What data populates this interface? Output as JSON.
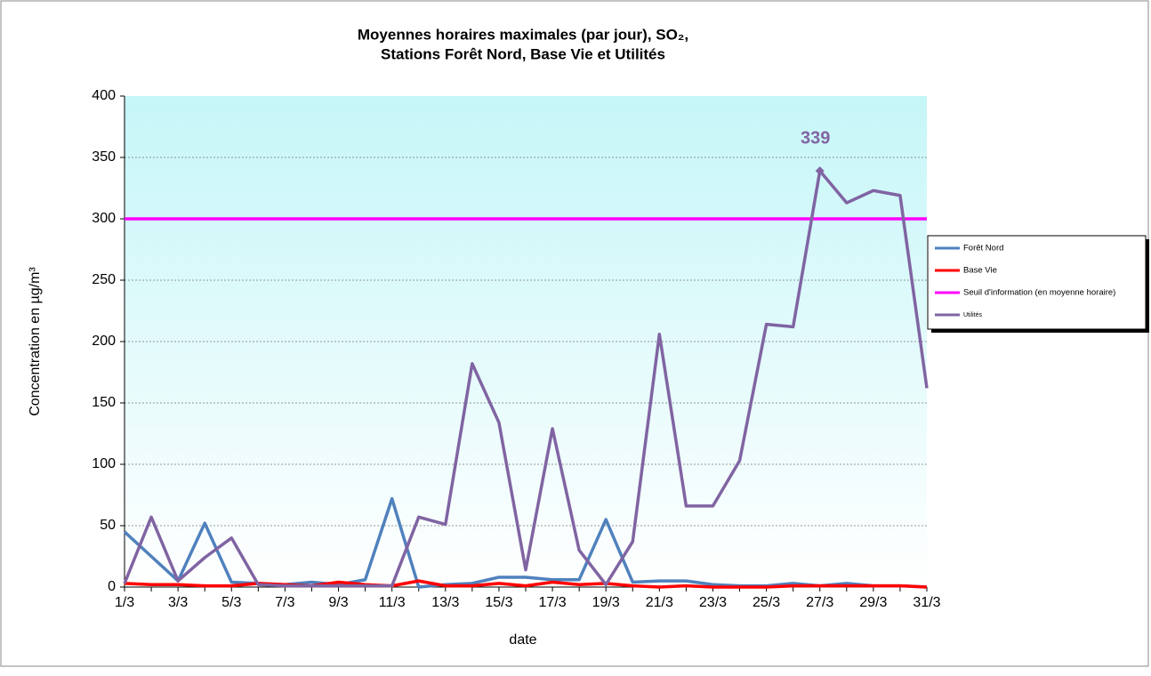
{
  "chart_data": {
    "type": "line",
    "title": [
      "Moyennes horaires maximales (par jour), SO₂,",
      "Stations Forêt Nord, Base Vie et Utilités"
    ],
    "xlabel": "date",
    "ylabel": "Concentration en µg/m³",
    "categories": [
      "1/3",
      null,
      "3/3",
      null,
      "5/3",
      null,
      "7/3",
      null,
      "9/3",
      null,
      "11/3",
      null,
      "13/3",
      null,
      "15/3",
      null,
      "17/3",
      null,
      "19/3",
      null,
      "21/3",
      null,
      "23/3",
      null,
      "25/3",
      null,
      "27/3",
      null,
      "29/3",
      null,
      "31/3"
    ],
    "series": [
      {
        "name": "Forêt Nord",
        "color": "#4f81bd",
        "values": [
          45,
          25,
          5,
          52,
          4,
          3,
          2,
          4,
          2,
          6,
          72,
          0,
          2,
          3,
          8,
          8,
          6,
          6,
          55,
          4,
          5,
          5,
          2,
          1,
          1,
          3,
          1,
          3,
          1,
          1,
          0
        ]
      },
      {
        "name": "Base Vie",
        "color": "#ff0000",
        "values": [
          3,
          2,
          2,
          1,
          1,
          3,
          2,
          1,
          4,
          2,
          1,
          5,
          1,
          1,
          3,
          1,
          4,
          2,
          3,
          1,
          0,
          1,
          0,
          0,
          0,
          1,
          1,
          1,
          1,
          1,
          0
        ]
      },
      {
        "name": "Seuil d'information (en moyenne horaire)",
        "color": "#ff00ff",
        "values": [
          300,
          300,
          300,
          300,
          300,
          300,
          300,
          300,
          300,
          300,
          300,
          300,
          300,
          300,
          300,
          300,
          300,
          300,
          300,
          300,
          300,
          300,
          300,
          300,
          300,
          300,
          300,
          300,
          300,
          300,
          300
        ]
      },
      {
        "name": "Utilités",
        "color": "#8064a2",
        "values": [
          3,
          57,
          5,
          24,
          40,
          2,
          1,
          1,
          1,
          1,
          1,
          57,
          51,
          182,
          134,
          14,
          129,
          30,
          2,
          37,
          206,
          66,
          66,
          103,
          214,
          212,
          339,
          313,
          323,
          319,
          162
        ],
        "data_label_index": 26
      }
    ],
    "ylim": [
      0,
      400
    ],
    "yticks": [
      0,
      50,
      100,
      150,
      200,
      250,
      300,
      350,
      400
    ],
    "grid": true,
    "legend": "right"
  }
}
